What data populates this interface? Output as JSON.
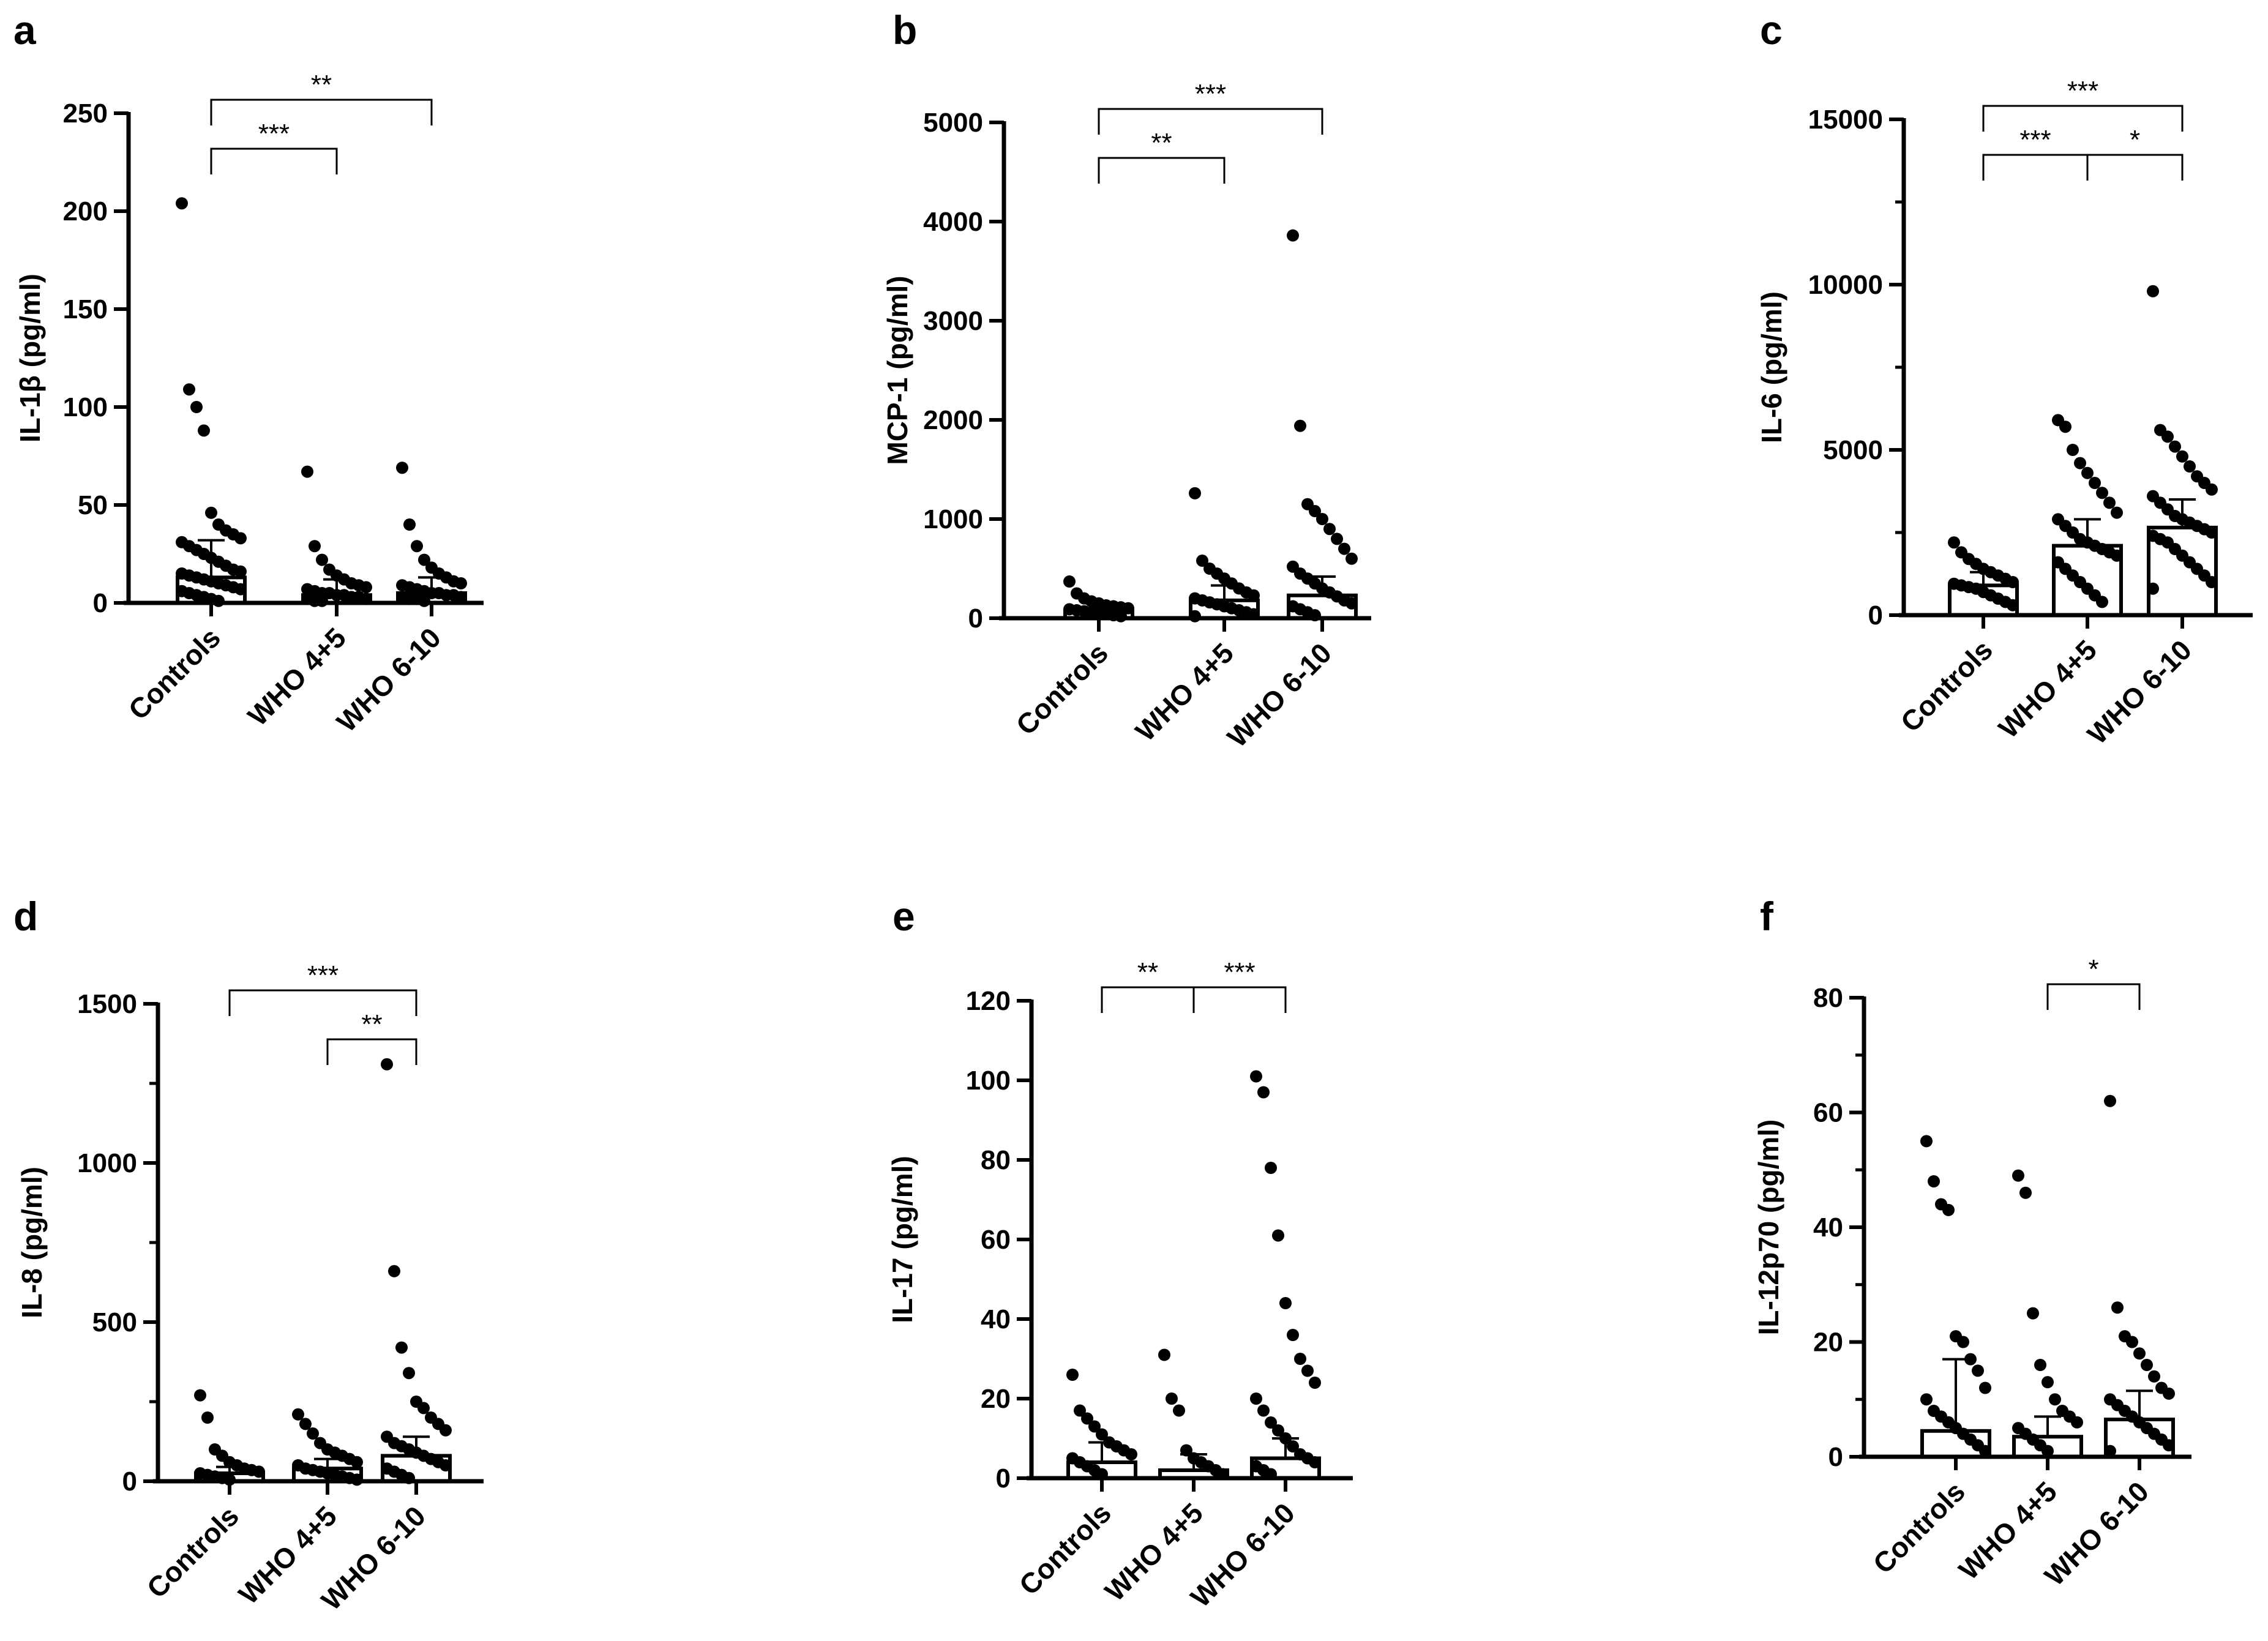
{
  "chart_data": [
    {
      "panel": "a",
      "type": "scatter",
      "ylabel": "IL-1β (pg/ml)",
      "ylim": [
        0,
        250
      ],
      "yticks": [
        0,
        50,
        100,
        150,
        200,
        250
      ],
      "categories": [
        "Controls",
        "WHO 4+5",
        "WHO 6-10"
      ],
      "bar_means": [
        13,
        4,
        5
      ],
      "error_tops": [
        32,
        12,
        13
      ],
      "points": [
        [
          204,
          109,
          100,
          88,
          46,
          40,
          37,
          35,
          33,
          31,
          29,
          27,
          25,
          23,
          21,
          19,
          17,
          16,
          15,
          14,
          13,
          12,
          11,
          10,
          9,
          8,
          7,
          6,
          5,
          4,
          3,
          2,
          1
        ],
        [
          67,
          29,
          22,
          17,
          14,
          12,
          10,
          9,
          8,
          7,
          6,
          5,
          5,
          4,
          4,
          3,
          3,
          2,
          2,
          1,
          1
        ],
        [
          69,
          40,
          29,
          22,
          18,
          15,
          13,
          11,
          10,
          9,
          8,
          7,
          6,
          5,
          5,
          4,
          4,
          3,
          3,
          2,
          2,
          1
        ]
      ],
      "brackets": [
        {
          "from": 0,
          "to": 2,
          "label": "**"
        },
        {
          "from": 0,
          "to": 1,
          "label": "***"
        }
      ]
    },
    {
      "panel": "b",
      "type": "scatter",
      "ylabel": "MCP-1 (pg/ml)",
      "ylim": [
        0,
        5000
      ],
      "yticks": [
        0,
        1000,
        2000,
        3000,
        4000,
        5000
      ],
      "categories": [
        "Controls",
        "WHO 4+5",
        "WHO 6-10"
      ],
      "bar_means": [
        80,
        180,
        230
      ],
      "error_tops": [
        150,
        330,
        420
      ],
      "points": [
        [
          370,
          250,
          200,
          170,
          150,
          130,
          120,
          110,
          100,
          90,
          80,
          70,
          60,
          50,
          40,
          30,
          20
        ],
        [
          1260,
          580,
          500,
          450,
          400,
          350,
          300,
          260,
          230,
          200,
          180,
          160,
          140,
          120,
          100,
          80,
          60,
          40,
          20
        ],
        [
          3860,
          1940,
          1150,
          1080,
          1000,
          900,
          800,
          700,
          600,
          520,
          450,
          400,
          350,
          300,
          260,
          220,
          180,
          150,
          120,
          90,
          60,
          30
        ]
      ],
      "brackets": [
        {
          "from": 0,
          "to": 2,
          "label": "***"
        },
        {
          "from": 0,
          "to": 1,
          "label": "**"
        }
      ]
    },
    {
      "panel": "c",
      "type": "scatter",
      "ylabel": "IL-6 (pg/ml)",
      "ylim": [
        0,
        15000
      ],
      "yticks": [
        0,
        5000,
        10000,
        15000
      ],
      "minor_yticks": [
        2500,
        7500,
        12500
      ],
      "categories": [
        "Controls",
        "WHO 4+5",
        "WHO 6-10"
      ],
      "bar_means": [
        900,
        2100,
        2650
      ],
      "error_tops": [
        1300,
        2900,
        3500
      ],
      "points": [
        [
          2200,
          1900,
          1700,
          1550,
          1400,
          1300,
          1200,
          1100,
          1000,
          950,
          900,
          850,
          800,
          700,
          600,
          500,
          400,
          300
        ],
        [
          5900,
          5700,
          5000,
          4600,
          4300,
          4000,
          3700,
          3400,
          3100,
          2900,
          2700,
          2500,
          2300,
          2200,
          2100,
          2000,
          1900,
          1800,
          1600,
          1400,
          1200,
          1000,
          800,
          600,
          400
        ],
        [
          9800,
          5600,
          5400,
          5100,
          4800,
          4500,
          4200,
          4000,
          3800,
          3600,
          3400,
          3200,
          3000,
          2900,
          2800,
          2700,
          2600,
          2500,
          2400,
          2300,
          2200,
          2000,
          1800,
          1600,
          1400,
          1200,
          1000,
          800
        ]
      ],
      "brackets": [
        {
          "from": 0,
          "to": 2,
          "label": "***"
        },
        {
          "from": 0,
          "to": 1,
          "label": "***"
        },
        {
          "from": 1,
          "to": 2,
          "label": "*"
        }
      ]
    },
    {
      "panel": "d",
      "type": "scatter",
      "ylabel": "IL-8 (pg/ml)",
      "ylim": [
        0,
        1500
      ],
      "yticks": [
        0,
        500,
        1000,
        1500
      ],
      "minor_yticks": [
        250,
        750,
        1250
      ],
      "categories": [
        "Controls",
        "WHO 4+5",
        "WHO 6-10"
      ],
      "bar_means": [
        25,
        40,
        80
      ],
      "error_tops": [
        45,
        70,
        140
      ],
      "points": [
        [
          270,
          200,
          100,
          80,
          60,
          50,
          40,
          35,
          30,
          25,
          20,
          15,
          10,
          5
        ],
        [
          210,
          180,
          150,
          120,
          100,
          90,
          80,
          70,
          60,
          50,
          40,
          35,
          30,
          25,
          20,
          15,
          10,
          5
        ],
        [
          1310,
          660,
          420,
          340,
          250,
          230,
          200,
          180,
          160,
          140,
          120,
          110,
          100,
          90,
          80,
          70,
          60,
          50,
          40,
          30,
          20,
          10
        ]
      ],
      "brackets": [
        {
          "from": 0,
          "to": 2,
          "label": "***"
        },
        {
          "from": 1,
          "to": 2,
          "label": "**"
        }
      ]
    },
    {
      "panel": "e",
      "type": "scatter",
      "ylabel": "IL-17 (pg/ml)",
      "ylim": [
        0,
        120
      ],
      "yticks": [
        0,
        20,
        40,
        60,
        80,
        100,
        120
      ],
      "categories": [
        "Controls",
        "WHO 4+5",
        "WHO 6-10"
      ],
      "bar_means": [
        4,
        2,
        5
      ],
      "error_tops": [
        9,
        6,
        10
      ],
      "points": [
        [
          26,
          17,
          15,
          13,
          11,
          9,
          8,
          7,
          6,
          5,
          4,
          3,
          2,
          1
        ],
        [
          31,
          20,
          17,
          7,
          5,
          4,
          3,
          2,
          1
        ],
        [
          101,
          97,
          78,
          61,
          44,
          36,
          30,
          27,
          24,
          20,
          17,
          14,
          12,
          10,
          8,
          6,
          5,
          4,
          3,
          2,
          1
        ]
      ],
      "brackets": [
        {
          "from": 0,
          "to": 1,
          "label": "**"
        },
        {
          "from": 1,
          "to": 2,
          "label": "***"
        }
      ]
    },
    {
      "panel": "f",
      "type": "scatter",
      "ylabel": "IL-12p70 (pg/ml)",
      "ylim": [
        0,
        80
      ],
      "yticks": [
        0,
        20,
        40,
        60,
        80
      ],
      "minor_yticks": [
        10,
        30,
        50,
        70
      ],
      "categories": [
        "Controls",
        "WHO 4+5",
        "WHO 6-10"
      ],
      "bar_means": [
        4.5,
        3.5,
        6.5
      ],
      "error_tops": [
        17,
        7,
        11.5
      ],
      "points": [
        [
          55,
          48,
          44,
          43,
          21,
          20,
          17,
          15,
          12,
          10,
          8,
          7,
          6,
          5,
          4,
          3,
          2,
          1
        ],
        [
          49,
          46,
          25,
          16,
          13,
          10,
          8,
          7,
          6,
          5,
          4,
          3,
          2,
          1
        ],
        [
          62,
          26,
          21,
          20,
          18,
          16,
          14,
          12,
          11,
          10,
          9,
          8,
          7,
          6,
          5,
          4,
          3,
          2,
          1
        ]
      ],
      "brackets": [
        {
          "from": 1,
          "to": 2,
          "label": "*"
        }
      ]
    }
  ]
}
